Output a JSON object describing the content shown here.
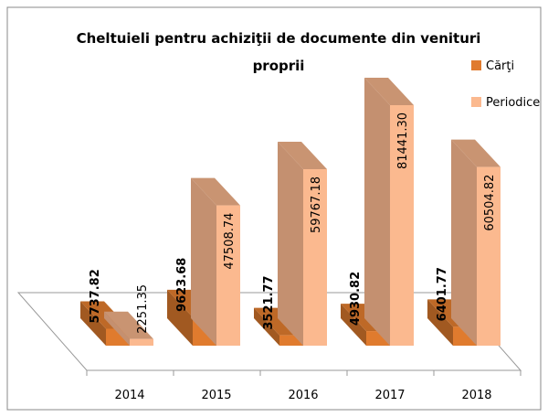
{
  "chart_data": {
    "type": "bar3d",
    "title": "Cheltuieli pentru achiziţii de documente din venituri proprii",
    "categories": [
      "2014",
      "2015",
      "2016",
      "2017",
      "2018"
    ],
    "series": [
      {
        "name": "Cărţi",
        "color": "#e07b2e",
        "values": [
          5737.82,
          9623.68,
          3521.77,
          4930.82,
          6401.77
        ]
      },
      {
        "name": "Periodice",
        "color": "#fbb98f",
        "values": [
          2251.35,
          47508.74,
          59767.18,
          81441.3,
          60504.82
        ],
        "value_labels": [
          "2251.35",
          "47508.74",
          "59767.18",
          "81441.30",
          "60504.82"
        ]
      }
    ]
  }
}
